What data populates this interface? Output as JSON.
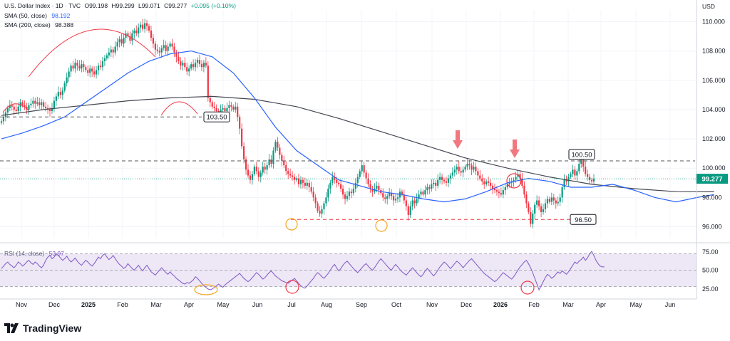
{
  "legend": {
    "title": "U.S. Dollar Index · 1D · TVC",
    "o": "O99.198",
    "h": "H99.299",
    "l": "L99.071",
    "c": "C99.277",
    "change": "+0.095 (+0.10%)",
    "sma50_label": "SMA (50, close)",
    "sma50_value": "98.192",
    "sma200_label": "SMA (200, close)",
    "sma200_value": "98.388",
    "rsi_label": "RSI (14, close)",
    "rsi_value": "53.97"
  },
  "brand": {
    "name": "TradingView"
  },
  "colors": {
    "up": "#089981",
    "down": "#f23645",
    "sma50": "#2962ff",
    "sma200": "#434651",
    "rsi": "#7e57c2",
    "rsi_band": "#ede7f6",
    "arc": "#f23645",
    "circle_orange": "#f5a623",
    "support": "#f23645",
    "resistance": "#555555",
    "last_price": "#089981"
  },
  "chart_data": {
    "type": "candlestick",
    "currency_label": "USD",
    "y_ticks": [
      "110.000",
      "108.000",
      "106.000",
      "104.000",
      "102.000",
      "100.000",
      "98.000",
      "96.000"
    ],
    "ylim": [
      95.2,
      110.8
    ],
    "x_ticks": [
      "Nov",
      "Dec",
      "2025",
      "Feb",
      "Mar",
      "Apr",
      "May",
      "Jun",
      "Jul",
      "Aug",
      "Sep",
      "Oct",
      "Nov",
      "Dec",
      "2026",
      "Feb",
      "Mar",
      "Apr",
      "May",
      "Jun"
    ],
    "last_price": 99.277,
    "last_price_label": "99.277",
    "levels": [
      {
        "value": 103.5,
        "label": "103.50",
        "style": "dashed"
      },
      {
        "value": 100.5,
        "label": "100.50",
        "style": "dashed"
      },
      {
        "value": 96.5,
        "label": "96.50",
        "style": "dashed-red"
      }
    ],
    "close": [
      103.2,
      103.5,
      103.8,
      104.1,
      104.3,
      104.2,
      104.0,
      103.9,
      104.2,
      104.5,
      104.3,
      104.2,
      104.0,
      104.3,
      104.4,
      104.6,
      104.4,
      104.5,
      104.3,
      104.5,
      104.2,
      104.1,
      104.0,
      103.9,
      104.1,
      104.6,
      104.9,
      105.2,
      105.0,
      105.3,
      105.8,
      106.2,
      106.6,
      107.0,
      106.8,
      107.2,
      107.0,
      106.8,
      107.1,
      106.9,
      106.7,
      106.5,
      106.8,
      106.6,
      106.4,
      106.7,
      107.0,
      106.9,
      107.3,
      107.5,
      107.7,
      107.9,
      108.1,
      107.9,
      108.3,
      108.6,
      108.8,
      108.5,
      108.9,
      109.2,
      109.0,
      108.7,
      109.2,
      109.4,
      109.2,
      109.6,
      109.8,
      109.5,
      109.9,
      109.7,
      109.4,
      108.9,
      108.5,
      108.1,
      108.0,
      107.9,
      108.2,
      108.4,
      108.0,
      108.3,
      108.5,
      108.3,
      107.9,
      107.6,
      107.3,
      107.0,
      107.2,
      106.9,
      106.6,
      106.8,
      107.1,
      106.9,
      107.2,
      107.4,
      107.1,
      106.9,
      107.2,
      107.0,
      104.8,
      104.5,
      104.2,
      104.1,
      103.9,
      103.8,
      104.0,
      104.1,
      103.9,
      104.1,
      104.3,
      104.2,
      104.0,
      104.2,
      103.5,
      102.7,
      101.5,
      100.6,
      99.9,
      99.5,
      99.2,
      99.6,
      100.1,
      99.8,
      99.4,
      99.7,
      100.1,
      99.9,
      100.2,
      100.6,
      100.3,
      101.2,
      101.8,
      101.4,
      100.9,
      100.5,
      100.2,
      99.8,
      99.6,
      99.5,
      99.4,
      99.2,
      99.3,
      98.9,
      99.2,
      99.0,
      98.8,
      99.0,
      98.7,
      98.4,
      98.0,
      97.6,
      97.1,
      96.9,
      97.2,
      97.6,
      98.0,
      98.6,
      99.0,
      99.4,
      99.2,
      99.0,
      98.9,
      98.6,
      98.2,
      97.9,
      98.1,
      98.4,
      98.3,
      98.6,
      99.0,
      99.4,
      99.8,
      100.2,
      99.7,
      99.3,
      98.9,
      98.6,
      98.4,
      98.6,
      98.8,
      98.5,
      98.3,
      98.0,
      97.9,
      98.1,
      98.3,
      98.1,
      97.8,
      97.9,
      98.0,
      98.4,
      98.2,
      97.8,
      97.4,
      96.8,
      97.4,
      97.8,
      97.6,
      97.9,
      98.2,
      98.4,
      98.2,
      98.5,
      98.7,
      98.6,
      98.9,
      99.0,
      98.8,
      99.2,
      99.4,
      99.2,
      99.1,
      99.0,
      99.3,
      99.5,
      99.7,
      99.9,
      100.1,
      99.8,
      99.7,
      99.9,
      100.1,
      100.3,
      100.2,
      99.9,
      100.1,
      99.8,
      99.5,
      99.3,
      99.1,
      98.9,
      99.1,
      99.0,
      98.8,
      98.6,
      98.5,
      98.4,
      98.3,
      98.2,
      98.5,
      98.7,
      98.9,
      99.0,
      99.1,
      99.2,
      99.4,
      99.6,
      99.3,
      98.8,
      98.2,
      97.6,
      97.0,
      96.2,
      96.9,
      97.5,
      97.8,
      97.4,
      97.0,
      97.2,
      97.6,
      97.9,
      97.7,
      98.0,
      97.8,
      97.6,
      97.7,
      98.0,
      98.7,
      99.2,
      99.1,
      99.4,
      99.6,
      99.9,
      99.5,
      99.8,
      100.3,
      100.6,
      100.1,
      99.6,
      99.4,
      99.2,
      99.1,
      99.28
    ],
    "sma50": [
      {
        "i": 0,
        "v": 102.0
      },
      {
        "i": 10,
        "v": 102.4
      },
      {
        "i": 20,
        "v": 102.9
      },
      {
        "i": 30,
        "v": 103.5
      },
      {
        "i": 40,
        "v": 104.5
      },
      {
        "i": 50,
        "v": 105.5
      },
      {
        "i": 60,
        "v": 106.5
      },
      {
        "i": 70,
        "v": 107.3
      },
      {
        "i": 80,
        "v": 107.8
      },
      {
        "i": 90,
        "v": 108.0
      },
      {
        "i": 100,
        "v": 107.6
      },
      {
        "i": 110,
        "v": 106.5
      },
      {
        "i": 120,
        "v": 104.8
      },
      {
        "i": 130,
        "v": 102.8
      },
      {
        "i": 140,
        "v": 101.2
      },
      {
        "i": 150,
        "v": 100.2
      },
      {
        "i": 160,
        "v": 99.2
      },
      {
        "i": 170,
        "v": 98.8
      },
      {
        "i": 180,
        "v": 98.4
      },
      {
        "i": 190,
        "v": 98.2
      },
      {
        "i": 200,
        "v": 97.9
      },
      {
        "i": 210,
        "v": 97.7
      },
      {
        "i": 220,
        "v": 97.9
      },
      {
        "i": 230,
        "v": 98.4
      },
      {
        "i": 240,
        "v": 99.0
      },
      {
        "i": 250,
        "v": 99.3
      },
      {
        "i": 260,
        "v": 99.1
      },
      {
        "i": 270,
        "v": 98.7
      },
      {
        "i": 280,
        "v": 98.7
      },
      {
        "i": 290,
        "v": 98.9
      },
      {
        "i": 300,
        "v": 98.5
      },
      {
        "i": 310,
        "v": 98.0
      },
      {
        "i": 320,
        "v": 97.7
      },
      {
        "i": 330,
        "v": 98.0
      },
      {
        "i": 338,
        "v": 98.2
      }
    ],
    "sma200": [
      {
        "i": 0,
        "v": 103.6
      },
      {
        "i": 20,
        "v": 104.0
      },
      {
        "i": 40,
        "v": 104.3
      },
      {
        "i": 60,
        "v": 104.6
      },
      {
        "i": 80,
        "v": 104.8
      },
      {
        "i": 100,
        "v": 104.9
      },
      {
        "i": 120,
        "v": 104.7
      },
      {
        "i": 140,
        "v": 104.2
      },
      {
        "i": 160,
        "v": 103.4
      },
      {
        "i": 180,
        "v": 102.5
      },
      {
        "i": 200,
        "v": 101.6
      },
      {
        "i": 220,
        "v": 100.7
      },
      {
        "i": 240,
        "v": 100.0
      },
      {
        "i": 260,
        "v": 99.4
      },
      {
        "i": 280,
        "v": 98.9
      },
      {
        "i": 300,
        "v": 98.6
      },
      {
        "i": 320,
        "v": 98.4
      },
      {
        "i": 338,
        "v": 98.39
      }
    ],
    "rsi": {
      "label": "RSI (14, close)",
      "ticks": [
        "75.00",
        "50.00",
        "25.00"
      ],
      "ylim": [
        20,
        80
      ],
      "band": [
        30,
        70
      ],
      "values": [
        52,
        55,
        58,
        60,
        57,
        55,
        53,
        56,
        60,
        58,
        55,
        57,
        60,
        62,
        59,
        57,
        60,
        58,
        55,
        53,
        56,
        62,
        66,
        68,
        64,
        66,
        70,
        68,
        65,
        62,
        64,
        67,
        63,
        60,
        62,
        65,
        61,
        58,
        56,
        59,
        62,
        60,
        57,
        55,
        58,
        62,
        66,
        64,
        68,
        70,
        66,
        63,
        65,
        68,
        64,
        60,
        57,
        55,
        52,
        54,
        58,
        55,
        52,
        50,
        53,
        56,
        52,
        49,
        53,
        56,
        52,
        48,
        46,
        44,
        47,
        50,
        53,
        50,
        47,
        45,
        48,
        45,
        43,
        40,
        38,
        36,
        34,
        33,
        35,
        34,
        36,
        38,
        42,
        40,
        37,
        34,
        31,
        29,
        27,
        26,
        27,
        29,
        31,
        33,
        31,
        29,
        32,
        34,
        36,
        38,
        40,
        42,
        44,
        46,
        43,
        40,
        38,
        36,
        38,
        41,
        44,
        47,
        45,
        42,
        39,
        41,
        44,
        47,
        49,
        46,
        43,
        41,
        39,
        37,
        36,
        35,
        34,
        36,
        38,
        40,
        37,
        34,
        31,
        29,
        28,
        31,
        34,
        37,
        40,
        44,
        47,
        45,
        42,
        40,
        43,
        46,
        50,
        54,
        57,
        53,
        49,
        52,
        56,
        59,
        61,
        58,
        55,
        52,
        49,
        47,
        50,
        53,
        56,
        58,
        55,
        52,
        50,
        53,
        57,
        61,
        64,
        61,
        58,
        55,
        52,
        50,
        54,
        57,
        54,
        51,
        48,
        46,
        44,
        47,
        50,
        53,
        50,
        47,
        44,
        42,
        45,
        49,
        52,
        49,
        46,
        43,
        46,
        50,
        54,
        57,
        60,
        58,
        55,
        52,
        55,
        58,
        61,
        59,
        56,
        53,
        56,
        59,
        62,
        64,
        61,
        58,
        55,
        52,
        49,
        46,
        44,
        42,
        40,
        38,
        36,
        38,
        41,
        44,
        47,
        45,
        43,
        41,
        39,
        42,
        46,
        50,
        54,
        57,
        60,
        62,
        58,
        53,
        47,
        40,
        33,
        26,
        31,
        36,
        41,
        45,
        43,
        40,
        42,
        45,
        48,
        46,
        49,
        47,
        45,
        48,
        52,
        56,
        60,
        58,
        61,
        63,
        66,
        62,
        65,
        70,
        73,
        68,
        62,
        58,
        55,
        54,
        53.97
      ]
    }
  }
}
